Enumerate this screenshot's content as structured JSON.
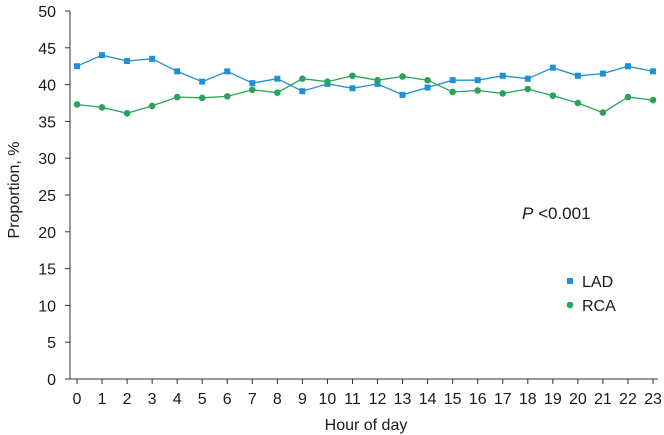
{
  "chart_data": {
    "type": "line",
    "xlabel": "Hour of day",
    "ylabel": "Proportion, %",
    "xlim": [
      0,
      23
    ],
    "ylim": [
      0,
      50
    ],
    "yticks": [
      0,
      5,
      10,
      15,
      20,
      25,
      30,
      35,
      40,
      45,
      50
    ],
    "x": [
      0,
      1,
      2,
      3,
      4,
      5,
      6,
      7,
      8,
      9,
      10,
      11,
      12,
      13,
      14,
      15,
      16,
      17,
      18,
      19,
      20,
      21,
      22,
      23
    ],
    "series": [
      {
        "name": "LAD",
        "color": "#1f8fd6",
        "marker": "square",
        "values": [
          42.5,
          44.0,
          43.2,
          43.5,
          41.8,
          40.4,
          41.8,
          40.2,
          40.8,
          39.1,
          40.1,
          39.5,
          40.1,
          38.6,
          39.6,
          40.6,
          40.6,
          41.2,
          40.8,
          42.3,
          41.2,
          41.5,
          42.5,
          41.8
        ]
      },
      {
        "name": "RCA",
        "color": "#2aa35a",
        "marker": "circle",
        "values": [
          37.3,
          36.9,
          36.1,
          37.1,
          38.3,
          38.2,
          38.4,
          39.3,
          38.9,
          40.8,
          40.4,
          41.2,
          40.6,
          41.1,
          40.6,
          39.0,
          39.2,
          38.8,
          39.4,
          38.5,
          37.5,
          36.2,
          38.3,
          37.9
        ]
      }
    ],
    "annotation": {
      "italic": "P",
      "text": " <0.001"
    },
    "legend": "right-lower"
  }
}
